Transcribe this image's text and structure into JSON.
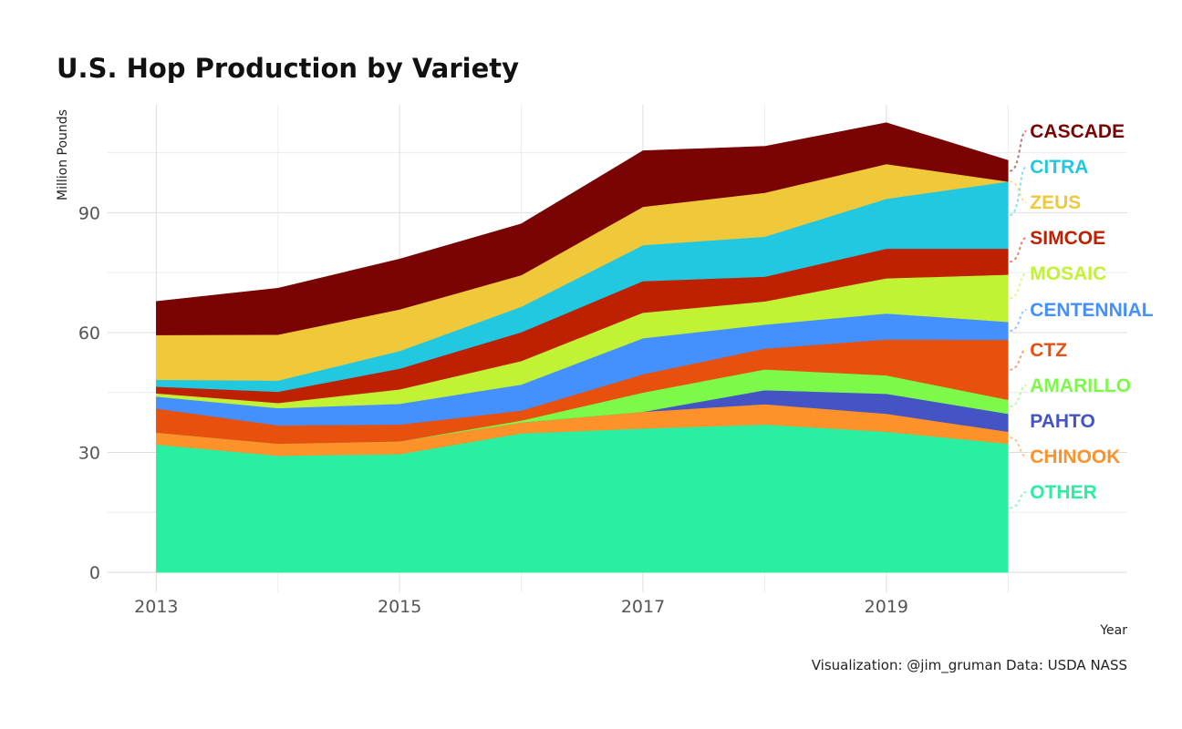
{
  "chart_data": {
    "type": "area",
    "stacked": true,
    "title": "U.S. Hop Production by Variety",
    "xlabel": "Year",
    "ylabel": "Million Pounds",
    "caption": "Visualization: @jim_gruman Data: USDA NASS",
    "x": [
      2013,
      2014,
      2015,
      2016,
      2017,
      2018,
      2019,
      2020
    ],
    "x_ticks": [
      "2013",
      "2015",
      "2017",
      "2019"
    ],
    "y_ticks": [
      "0",
      "30",
      "60",
      "90"
    ],
    "xlim": [
      2012.6,
      2020.98
    ],
    "ylim": [
      -5,
      117
    ],
    "grid": true,
    "legend": "direct labels at right end",
    "series": [
      {
        "name": "OTHER",
        "color": "#2BEFA0",
        "values": [
          32.0,
          29.2,
          29.6,
          34.8,
          36.0,
          37.0,
          35.2,
          32.2
        ]
      },
      {
        "name": "CHINOOK",
        "color": "#FE922A",
        "values": [
          3.0,
          3.0,
          3.2,
          2.7,
          4.2,
          5.1,
          4.5,
          3.0
        ]
      },
      {
        "name": "PAHTO",
        "color": "#4454C4",
        "values": [
          0,
          0,
          0,
          0,
          0,
          3.5,
          5.0,
          4.5
        ]
      },
      {
        "name": "AMARILLO",
        "color": "#7DF94A",
        "values": [
          0,
          0,
          0,
          0.5,
          4.8,
          5.2,
          4.6,
          3.5
        ]
      },
      {
        "name": "CTZ",
        "color": "#E8500E",
        "values": [
          6.0,
          4.6,
          4.2,
          2.5,
          4.6,
          5.2,
          9.0,
          15.0
        ]
      },
      {
        "name": "CENTENNIAL",
        "color": "#4490FE",
        "values": [
          3.0,
          4.3,
          5.2,
          6.5,
          9.0,
          6.0,
          6.5,
          4.5
        ]
      },
      {
        "name": "MOSAIC",
        "color": "#C1F334",
        "values": [
          0.8,
          1.3,
          3.6,
          5.9,
          6.4,
          5.8,
          8.8,
          11.8
        ]
      },
      {
        "name": "SIMCOE",
        "color": "#BE2102",
        "values": [
          1.7,
          2.8,
          5.2,
          7.2,
          7.9,
          6.2,
          7.4,
          6.5
        ]
      },
      {
        "name": "CITRA",
        "color": "#22C8E0",
        "values": [
          1.7,
          2.8,
          4.4,
          6.4,
          9.0,
          10.0,
          12.5,
          16.8
        ]
      },
      {
        "name": "ZEUS",
        "color": "#F0C93A",
        "values": [
          11.2,
          11.5,
          10.4,
          7.9,
          9.6,
          11.0,
          8.7,
          0
        ]
      },
      {
        "name": "CASCADE",
        "color": "#7A0403",
        "values": [
          8.4,
          11.6,
          12.6,
          12.8,
          14.0,
          11.6,
          10.3,
          5.3
        ]
      }
    ],
    "labels_top_to_bottom": [
      "CASCADE",
      "CITRA",
      "ZEUS",
      "SIMCOE",
      "MOSAIC",
      "CENTENNIAL",
      "CTZ",
      "AMARILLO",
      "PAHTO",
      "CHINOOK",
      "OTHER"
    ]
  }
}
